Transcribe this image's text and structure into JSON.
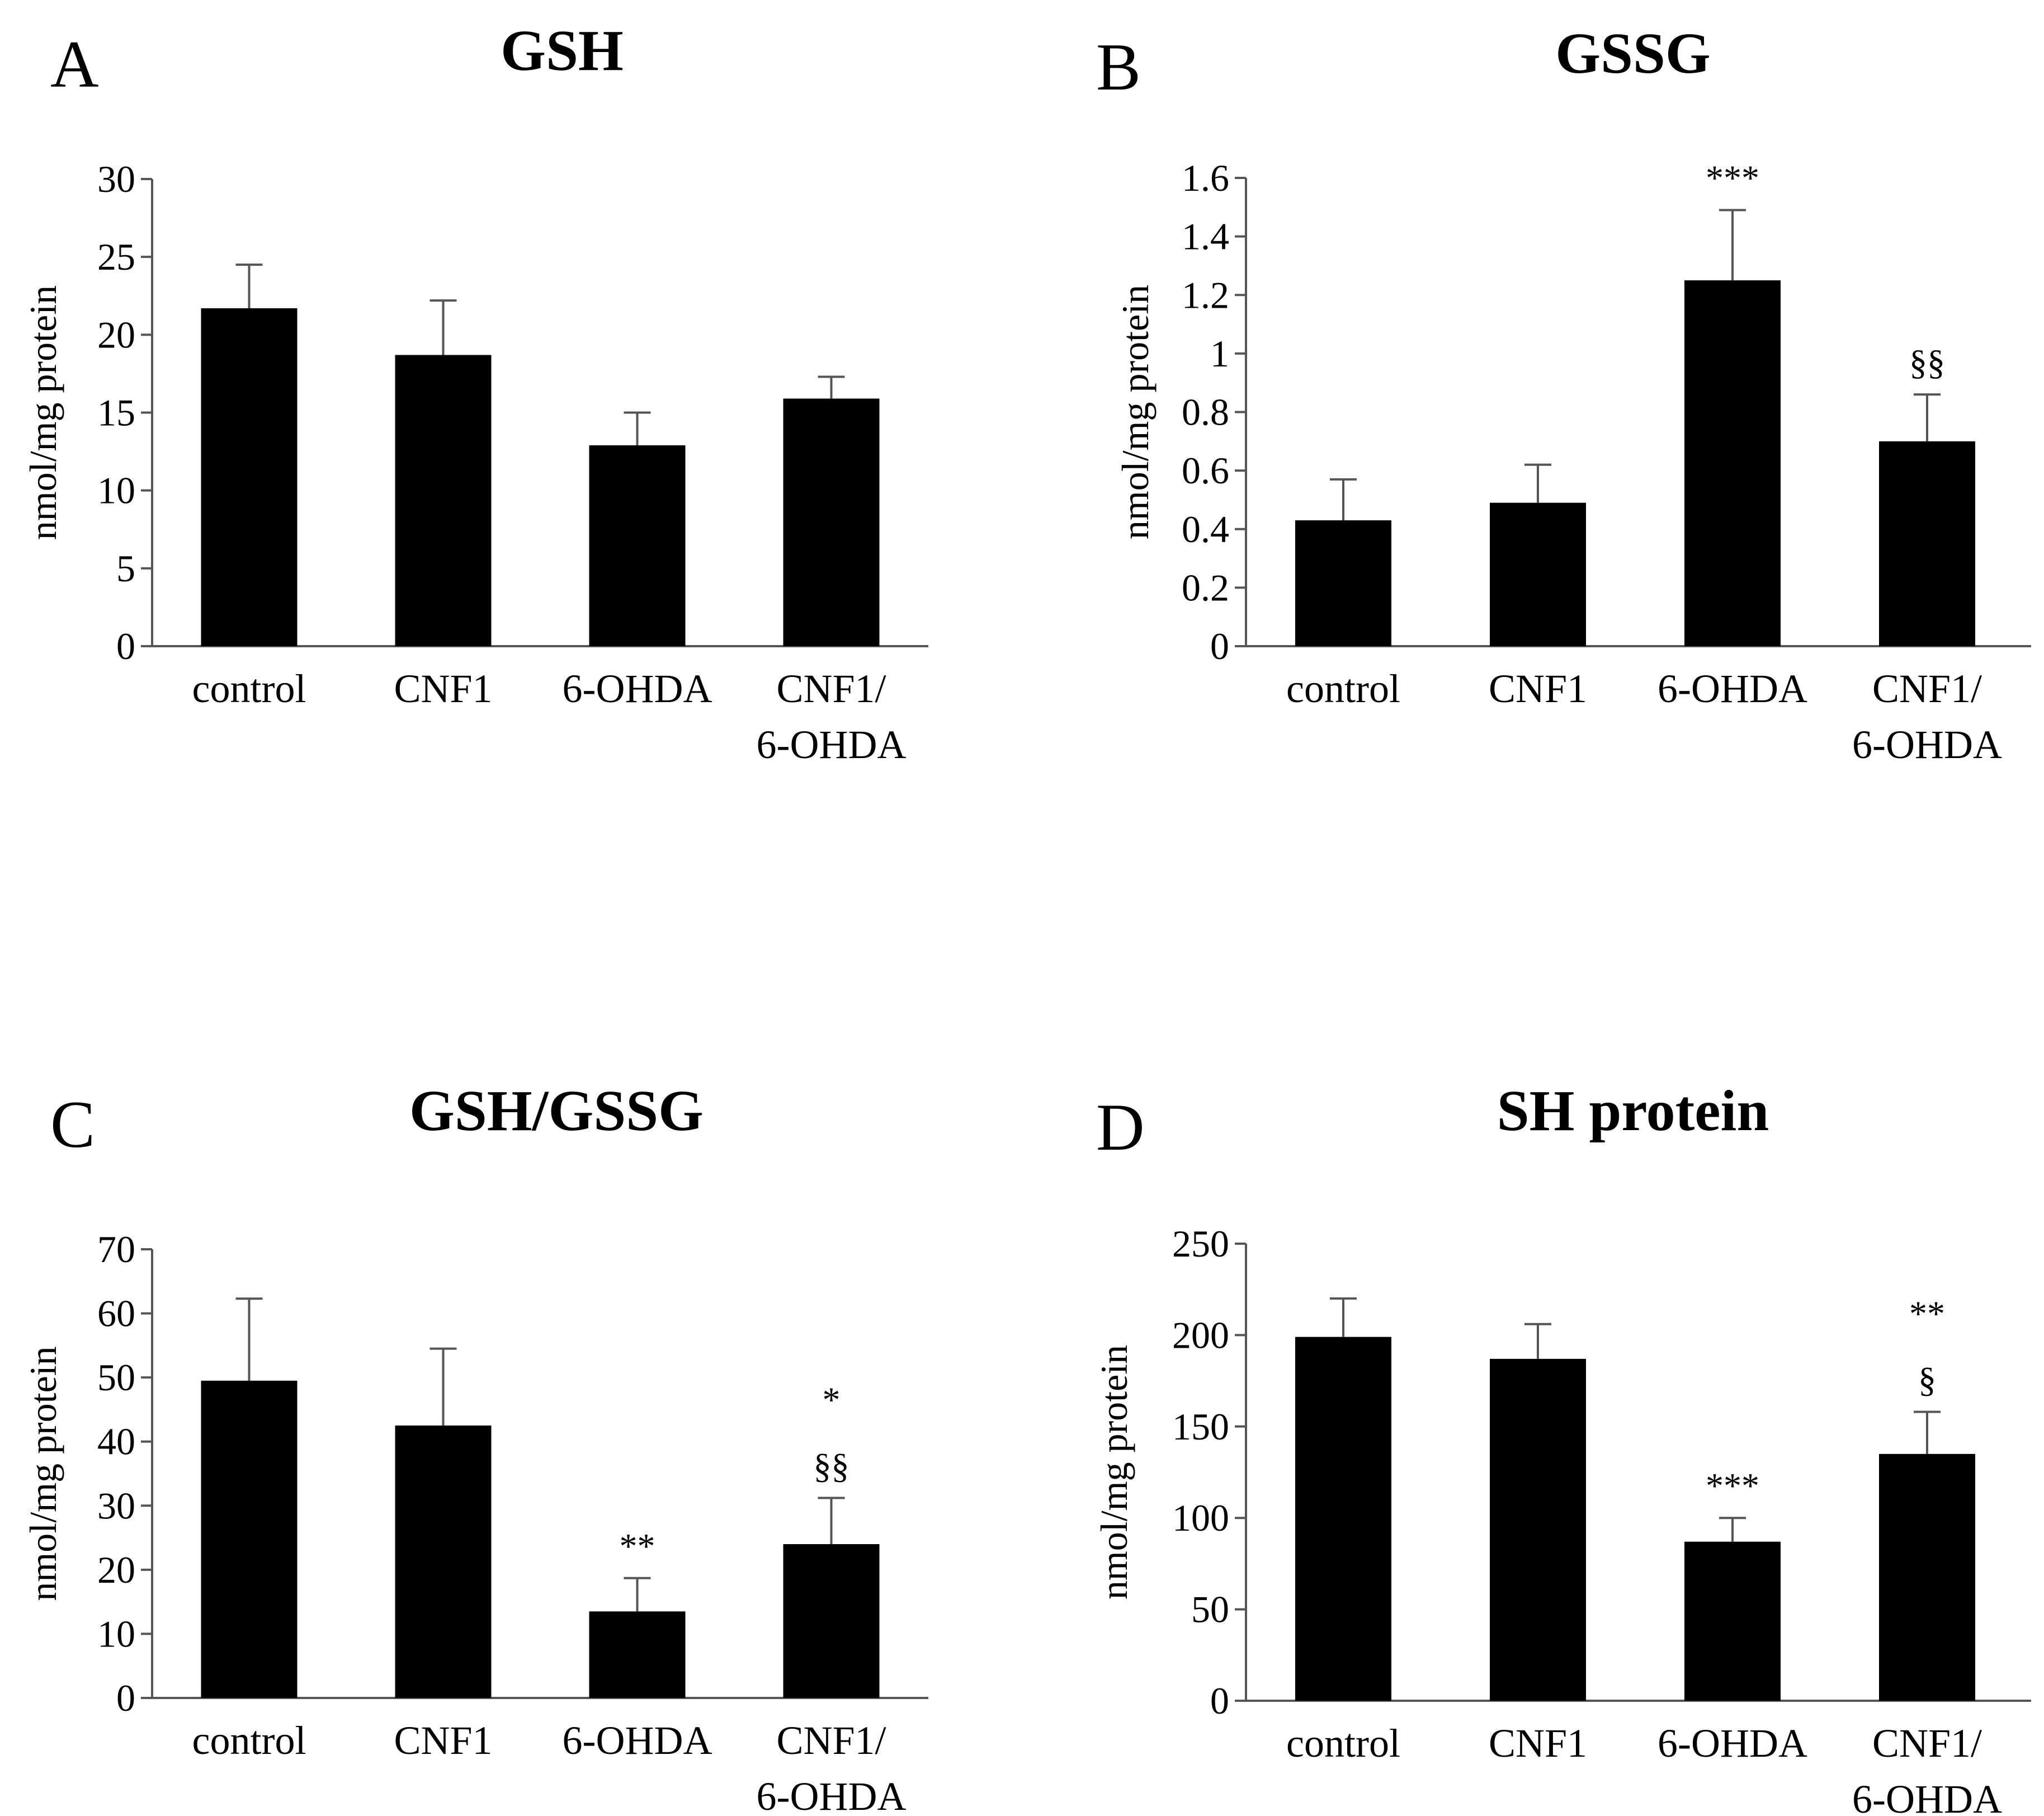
{
  "chart_data": [
    {
      "type": "bar",
      "panel": "A",
      "title": "GSH",
      "ylabel": "nmol/mg protein",
      "xlabel": "",
      "ylim": [
        0,
        30
      ],
      "yticks": [
        0,
        5,
        10,
        15,
        20,
        25,
        30
      ],
      "ytick_labels": [
        "0",
        "5",
        "10",
        "15",
        "20",
        "25",
        "30"
      ],
      "categories": [
        [
          "control"
        ],
        [
          "CNF1"
        ],
        [
          "6-OHDA"
        ],
        [
          "CNF1/",
          "6-OHDA"
        ]
      ],
      "values": [
        21.7,
        18.7,
        12.9,
        15.9
      ],
      "errors": [
        2.8,
        3.5,
        2.1,
        1.4
      ],
      "annotations": [
        [],
        [],
        [],
        []
      ]
    },
    {
      "type": "bar",
      "panel": "B",
      "title": "GSSG",
      "ylabel": "nmol/mg protein",
      "xlabel": "",
      "ylim": [
        0,
        1.6
      ],
      "yticks": [
        0,
        0.2,
        0.4,
        0.6,
        0.8,
        1.0,
        1.2,
        1.4,
        1.6
      ],
      "ytick_labels": [
        "0",
        "0.2",
        "0.4",
        "0.6",
        "0.8",
        "1",
        "1.2",
        "1.4",
        "1.6"
      ],
      "categories": [
        [
          "control"
        ],
        [
          "CNF1"
        ],
        [
          "6-OHDA"
        ],
        [
          "CNF1/",
          "6-OHDA"
        ]
      ],
      "values": [
        0.43,
        0.49,
        1.25,
        0.7
      ],
      "errors": [
        0.14,
        0.13,
        0.24,
        0.16
      ],
      "annotations": [
        [],
        [],
        [
          "***"
        ],
        [
          "§§"
        ]
      ]
    },
    {
      "type": "bar",
      "panel": "C",
      "title": "GSH/GSSG",
      "ylabel": "nmol/mg protein",
      "xlabel": "",
      "ylim": [
        0,
        70
      ],
      "yticks": [
        0,
        10,
        20,
        30,
        40,
        50,
        60,
        70
      ],
      "ytick_labels": [
        "0",
        "10",
        "20",
        "30",
        "40",
        "50",
        "60",
        "70"
      ],
      "categories": [
        [
          "control"
        ],
        [
          "CNF1"
        ],
        [
          "6-OHDA"
        ],
        [
          "CNF1/",
          "6-OHDA"
        ]
      ],
      "values": [
        49.5,
        42.5,
        13.5,
        24.0
      ],
      "errors": [
        12.8,
        12.0,
        5.2,
        7.2
      ],
      "annotations": [
        [],
        [],
        [
          "**"
        ],
        [
          "*",
          "§§"
        ]
      ]
    },
    {
      "type": "bar",
      "panel": "D",
      "title": "SH protein",
      "ylabel": "nmol/mg protein",
      "xlabel": "",
      "ylim": [
        0,
        250
      ],
      "yticks": [
        0,
        50,
        100,
        150,
        200,
        250
      ],
      "ytick_labels": [
        "0",
        "50",
        "100",
        "150",
        "200",
        "250"
      ],
      "categories": [
        [
          "control"
        ],
        [
          "CNF1"
        ],
        [
          "6-OHDA"
        ],
        [
          "CNF1/",
          "6-OHDA"
        ]
      ],
      "values": [
        199,
        187,
        87,
        135
      ],
      "errors": [
        21,
        19,
        13,
        23
      ],
      "annotations": [
        [],
        [],
        [
          "***"
        ],
        [
          "**",
          "§"
        ]
      ]
    }
  ]
}
